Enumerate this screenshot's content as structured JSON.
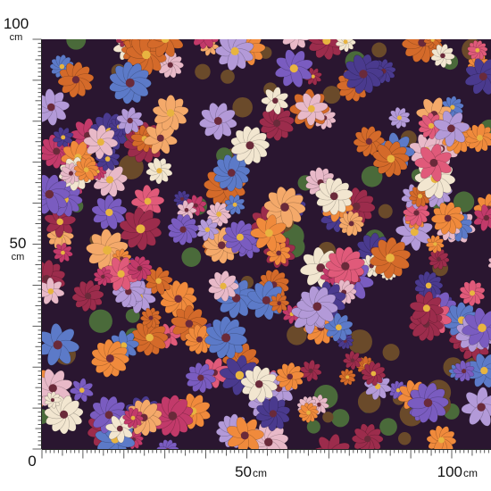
{
  "left_ruler": {
    "top": {
      "value": "100",
      "unit": "cm"
    },
    "middle": {
      "value": "50",
      "unit": "cm"
    }
  },
  "bottom_ruler": {
    "origin": "0",
    "middle": {
      "value": "50",
      "unit": "cm"
    },
    "end": {
      "value": "100",
      "unit": "cm"
    }
  }
}
